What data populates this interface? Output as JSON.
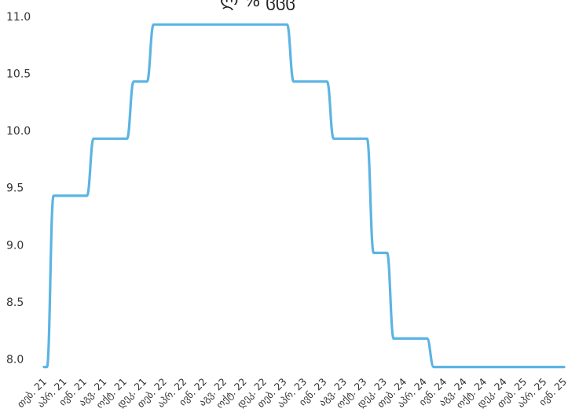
{
  "chart_data": {
    "type": "line",
    "title": "ლ % ცცც",
    "xlabel": "",
    "ylabel": "",
    "ylim": [
      7.9,
      11.0
    ],
    "yticks": [
      "8.0",
      "8.5",
      "9.0",
      "9.5",
      "10.0",
      "10.5",
      "11.0"
    ],
    "grid": false,
    "legend": "none",
    "line_color": "#5cb4e3",
    "categories": [
      "თებ. 21",
      "აპრ. 21",
      "ივნ. 21",
      "აგვ. 21",
      "ოქტ. 21",
      "დეკ. 21",
      "თებ. 22",
      "აპრ. 22",
      "ივნ. 22",
      "აგვ. 22",
      "ოქტ. 22",
      "დეკ. 22",
      "თებ. 23",
      "აპრ. 23",
      "ივნ. 23",
      "აგვ. 23",
      "ოქტ. 23",
      "დეკ. 23",
      "თებ. 24",
      "აპრ. 24",
      "ივნ. 24",
      "აგვ. 24",
      "ოქტ. 24",
      "დეკ. 24",
      "თებ. 25",
      "აპრ. 25",
      "ივნ. 25"
    ],
    "series": [
      {
        "values": [
          7.93,
          9.43,
          9.43,
          9.93,
          9.93,
          10.43,
          10.93,
          10.93,
          10.93,
          10.93,
          10.93,
          10.93,
          10.93,
          10.43,
          10.43,
          9.93,
          9.93,
          8.93,
          8.18,
          8.18,
          7.93,
          7.93,
          7.93,
          7.93,
          7.93,
          7.93,
          7.93
        ]
      }
    ]
  }
}
